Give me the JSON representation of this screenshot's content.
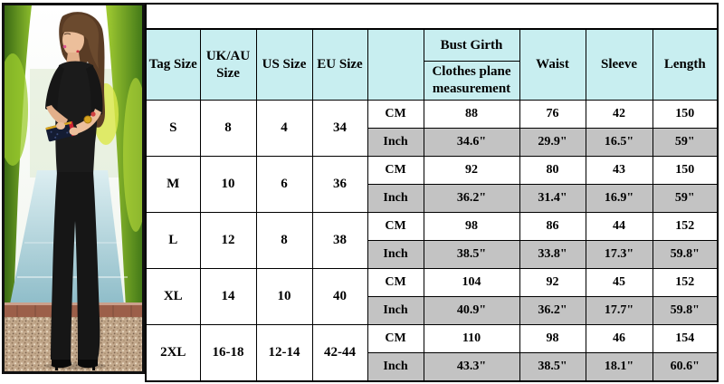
{
  "photo": {
    "alt": "Model wearing a black round-neck 3/4-sleeve wide-leg jumpsuit, holding a studded clutch, standing on a gravel garden path beside a reflecting pool lined by green hedges",
    "palette": {
      "frame": "#111111",
      "hedge_dark_green": "#3a6a14",
      "hedge_lime": "#a2cc32",
      "water_blue": "#9fc6cf",
      "brick_red": "#9c5f49",
      "gravel_tan": "#c2a88c",
      "jumpsuit_black": "#1b1b1b",
      "hair_brown": "#5a3c25",
      "skin": "#ecbf9b",
      "clutch_navy": "#141c33",
      "clutch_red": "#cc2233",
      "watch_gold": "#d8a520",
      "lips_pink": "#d94f8e"
    }
  },
  "size_chart": {
    "headers": {
      "tag_size": "Tag Size",
      "uk_au": "UK/AU Size",
      "us": "US Size",
      "eu": "EU Size",
      "unit": "",
      "bust_girth": "Bust Girth",
      "bust_sub": "Clothes plane measurement",
      "waist": "Waist",
      "sleeve": "Sleeve",
      "length": "Length"
    },
    "unit_cm": "CM",
    "unit_inch": "Inch",
    "rows": [
      {
        "tag": "S",
        "uk_au": "8",
        "us": "4",
        "eu": "34",
        "cm": [
          "88",
          "76",
          "42",
          "150"
        ],
        "inch": [
          "34.6\"",
          "29.9\"",
          "16.5\"",
          "59\""
        ]
      },
      {
        "tag": "M",
        "uk_au": "10",
        "us": "6",
        "eu": "36",
        "cm": [
          "92",
          "80",
          "43",
          "150"
        ],
        "inch": [
          "36.2\"",
          "31.4\"",
          "16.9\"",
          "59\""
        ]
      },
      {
        "tag": "L",
        "uk_au": "12",
        "us": "8",
        "eu": "38",
        "cm": [
          "98",
          "86",
          "44",
          "152"
        ],
        "inch": [
          "38.5\"",
          "33.8\"",
          "17.3\"",
          "59.8\""
        ]
      },
      {
        "tag": "XL",
        "uk_au": "14",
        "us": "10",
        "eu": "40",
        "cm": [
          "104",
          "92",
          "45",
          "152"
        ],
        "inch": [
          "40.9\"",
          "36.2\"",
          "17.7\"",
          "59.8\""
        ]
      },
      {
        "tag": "2XL",
        "uk_au": "16-18",
        "us": "12-14",
        "eu": "42-44",
        "cm": [
          "110",
          "98",
          "46",
          "154"
        ],
        "inch": [
          "43.3\"",
          "38.5\"",
          "18.1\"",
          "60.6\""
        ]
      }
    ],
    "colors": {
      "header_bg": "#c8eef0",
      "inch_row_bg": "#c3c3c3",
      "cm_row_bg": "#ffffff",
      "border": "#000000"
    }
  }
}
